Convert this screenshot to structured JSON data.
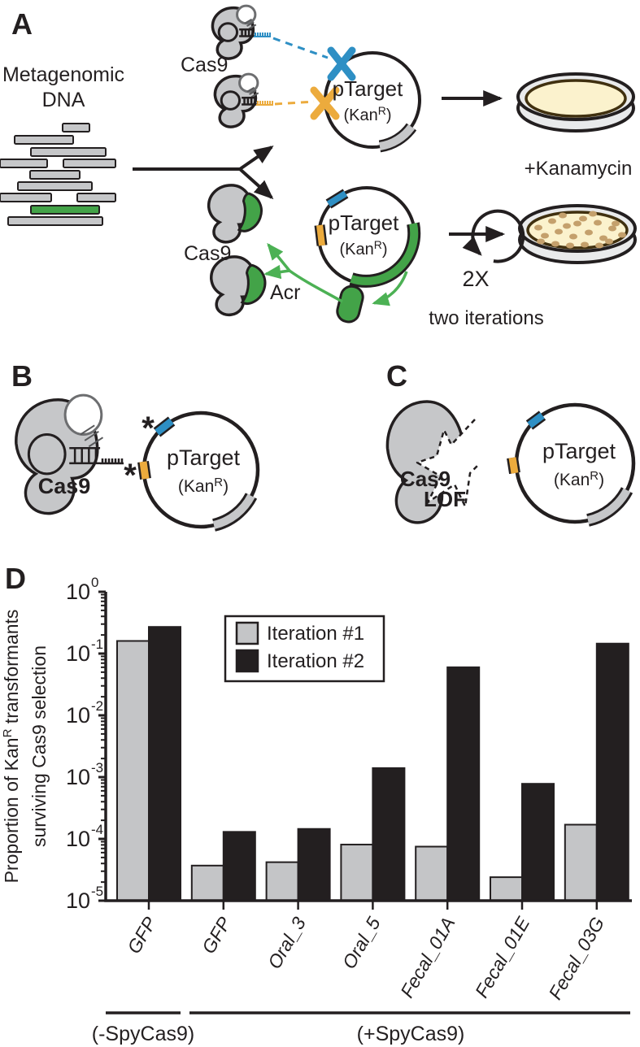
{
  "figure": {
    "panel_a": {
      "label": "A",
      "metagenomic_line1": "Metagenomic",
      "metagenomic_line2": "DNA",
      "cas9_top_label": "Cas9",
      "cas9_bottom_label": "Cas9",
      "acr_label": "Acr",
      "kanamycin_label": "+Kanamycin",
      "loop_label": "2X",
      "iterations_label": "two iterations"
    },
    "panel_b": {
      "label": "B",
      "cas9_label": "Cas9",
      "asterisk_blue": "*",
      "asterisk_yellow": "*"
    },
    "panel_c": {
      "label": "C",
      "cas9_label": "Cas9",
      "lof_label": "LOF"
    },
    "panel_d": {
      "label": "D"
    },
    "plasmid": {
      "name": "pTarget",
      "kan_prefix": "(Kan",
      "kan_sup": "R",
      "kan_suffix": ")"
    }
  },
  "colors": {
    "blue_protospacer": "#2e8fc4",
    "yellow_protospacer": "#ecab3d",
    "green_acr": "#43a348",
    "green_arrow": "#4cb154",
    "gray_fill": "#c6c7c9",
    "outline_black": "#231f20",
    "agar_cream": "#fbf2cd",
    "agar_ring_brown": "#40300f",
    "colony_tan": "#c4a06c",
    "dish_gray": "#e9eaeb",
    "bar_gray": "#c4c5c7",
    "bar_black": "#231f20"
  },
  "chart_data": {
    "type": "bar",
    "y_scale": "log",
    "title": "",
    "ylabel_line1_prefix": "Proportion of Kan",
    "ylabel_line1_sup": "R",
    "ylabel_line1_suffix": " transformants",
    "ylabel_line2": "surviving Cas9 selection",
    "xlabel": "",
    "categories": [
      "GFP",
      "GFP",
      "Oral_3",
      "Oral_5",
      "Fecal_01A",
      "Fecal_01E",
      "Fecal_03G"
    ],
    "series": [
      {
        "name": "Iteration #1",
        "color": "#c4c5c7",
        "values": [
          0.16,
          3.7e-05,
          4.2e-05,
          8.1e-05,
          7.5e-05,
          2.4e-05,
          0.00017
        ]
      },
      {
        "name": "Iteration #2",
        "color": "#231f20",
        "values": [
          0.27,
          0.00013,
          0.000145,
          0.0014,
          0.06,
          0.00078,
          0.145
        ]
      }
    ],
    "ylim": [
      1e-05,
      1
    ],
    "y_tick_base": "10",
    "y_tick_exponents": [
      0,
      -1,
      -2,
      -3,
      -4,
      -5
    ],
    "grid": false,
    "legend_position": "upper-left-inside",
    "group_annotations": [
      {
        "label": "(-SpyCas9)",
        "start": 0,
        "end": 0
      },
      {
        "label": "(+SpyCas9)",
        "start": 1,
        "end": 6
      }
    ]
  }
}
